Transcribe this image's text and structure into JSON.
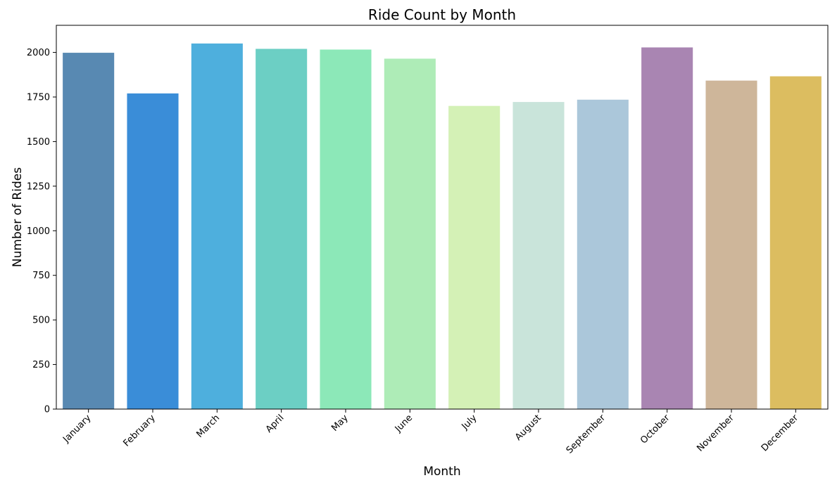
{
  "chart_data": {
    "type": "bar",
    "title": "Ride Count by Month",
    "xlabel": "Month",
    "ylabel": "Number of Rides",
    "categories": [
      "January",
      "February",
      "March",
      "April",
      "May",
      "June",
      "July",
      "August",
      "September",
      "October",
      "November",
      "December"
    ],
    "values": [
      1998,
      1770,
      2050,
      2020,
      2016,
      1965,
      1700,
      1722,
      1735,
      2028,
      1842,
      1866
    ],
    "colors": [
      "#5889b2",
      "#3a8dd8",
      "#4eafdd",
      "#6ccfc4",
      "#8ce8b8",
      "#aeecb7",
      "#d4f1b6",
      "#c9e4da",
      "#abc7da",
      "#a985b2",
      "#ceb69a",
      "#dcbd60"
    ],
    "ylim": [
      0,
      2152
    ],
    "yticks": [
      0,
      250,
      500,
      750,
      1000,
      1250,
      1500,
      1750,
      2000
    ],
    "grid": false,
    "legend": "none"
  }
}
